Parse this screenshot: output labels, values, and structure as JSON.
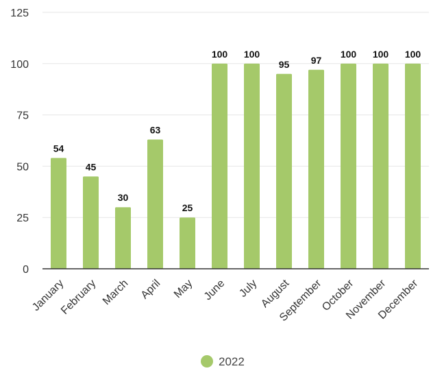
{
  "chart_data": {
    "type": "bar",
    "title": "",
    "xlabel": "",
    "ylabel": "",
    "ylim": [
      0,
      125
    ],
    "yticks": [
      0,
      25,
      50,
      75,
      100,
      125
    ],
    "grid": true,
    "legend_position": "bottom",
    "categories": [
      "January",
      "February",
      "March",
      "April",
      "May",
      "June",
      "July",
      "August",
      "September",
      "October",
      "November",
      "December"
    ],
    "series": [
      {
        "name": "2022",
        "color": "#a5c96a",
        "values": [
          54,
          45,
          30,
          63,
          25,
          100,
          100,
          95,
          97,
          100,
          100,
          100
        ]
      }
    ]
  }
}
